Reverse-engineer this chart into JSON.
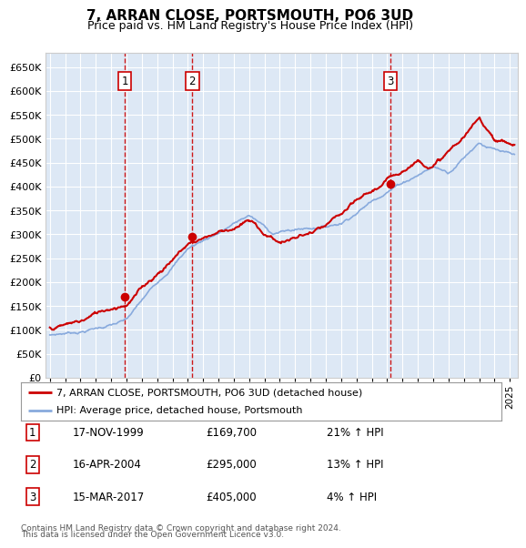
{
  "title": "7, ARRAN CLOSE, PORTSMOUTH, PO6 3UD",
  "subtitle": "Price paid vs. HM Land Registry's House Price Index (HPI)",
  "ylim": [
    0,
    680000
  ],
  "yticks": [
    0,
    50000,
    100000,
    150000,
    200000,
    250000,
    300000,
    350000,
    400000,
    450000,
    500000,
    550000,
    600000,
    650000
  ],
  "xlim_start": 1994.7,
  "xlim_end": 2025.5,
  "sale_dates": [
    1999.88,
    2004.29,
    2017.21
  ],
  "sale_prices": [
    169700,
    295000,
    405000
  ],
  "sale_labels": [
    "1",
    "2",
    "3"
  ],
  "red_line_color": "#cc0000",
  "blue_line_color": "#88aadd",
  "sale_marker_color": "#cc0000",
  "vline_color": "#cc0000",
  "background_color": "#ffffff",
  "plot_bg_color": "#dde8f5",
  "grid_color": "#ffffff",
  "legend_entries": [
    "7, ARRAN CLOSE, PORTSMOUTH, PO6 3UD (detached house)",
    "HPI: Average price, detached house, Portsmouth"
  ],
  "table_rows": [
    [
      "1",
      "17-NOV-1999",
      "£169,700",
      "21% ↑ HPI"
    ],
    [
      "2",
      "16-APR-2004",
      "£295,000",
      "13% ↑ HPI"
    ],
    [
      "3",
      "15-MAR-2017",
      "£405,000",
      "4% ↑ HPI"
    ]
  ],
  "footnote1": "Contains HM Land Registry data © Crown copyright and database right 2024.",
  "footnote2": "This data is licensed under the Open Government Licence v3.0."
}
